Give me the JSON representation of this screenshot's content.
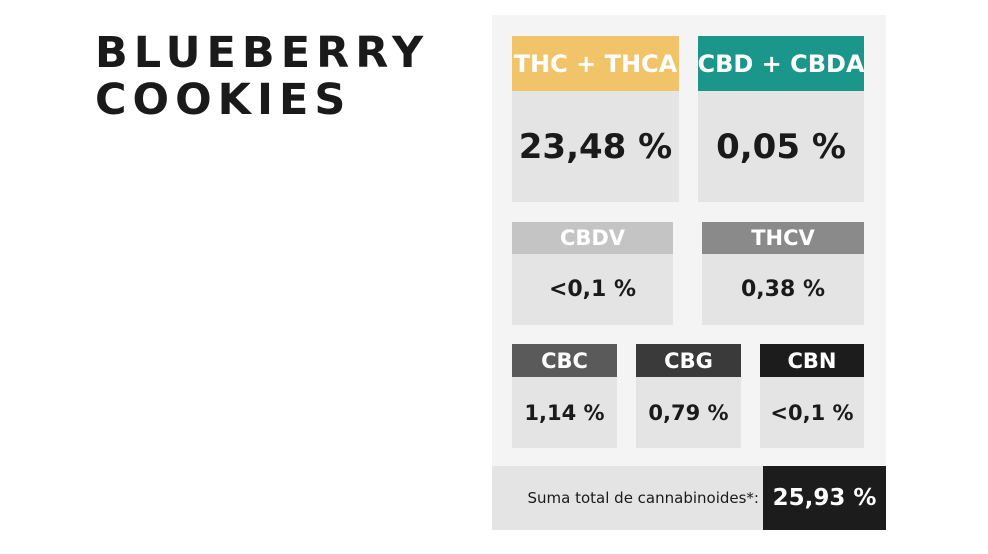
{
  "product": {
    "title_lines": [
      "BLUEBERRY",
      "COOKIES"
    ]
  },
  "cannabinoids": {
    "main": [
      {
        "name": "THC + THCA",
        "value": "23,48 %"
      },
      {
        "name": "CBD + CBDA",
        "value": "0,05 %"
      }
    ],
    "secondary": [
      {
        "name": "CBDV",
        "value": "<0,1 %"
      },
      {
        "name": "THCV",
        "value": "0,38 %"
      }
    ],
    "minor": [
      {
        "name": "CBC",
        "value": "1,14 %"
      },
      {
        "name": "CBG",
        "value": "0,79 %"
      },
      {
        "name": "CBN",
        "value": "<0,1 %"
      }
    ]
  },
  "total": {
    "label": "Suma total de cannabinoides*:",
    "value": "25,93 %"
  }
}
